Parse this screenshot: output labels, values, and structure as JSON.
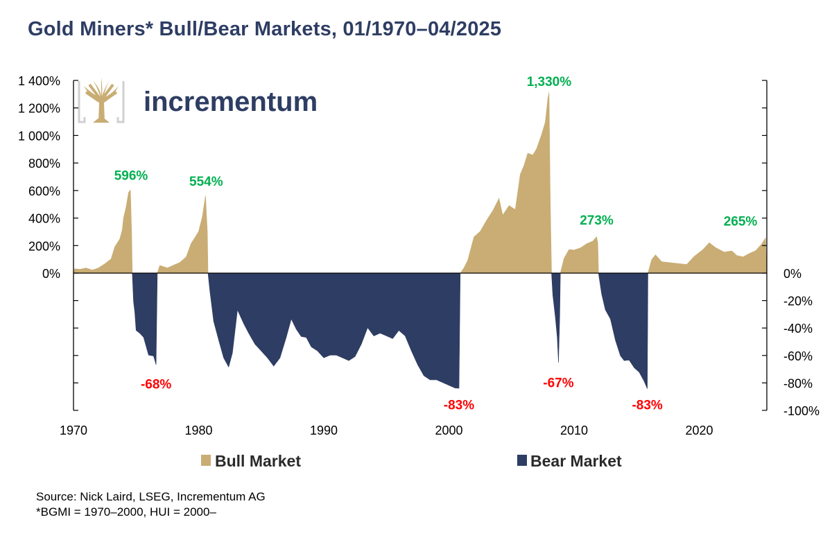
{
  "title": "Gold Miners* Bull/Bear Markets, 01/1970–04/2025",
  "logo": {
    "text": "incrementum",
    "icon": "tree-icon"
  },
  "source": "Source: Nick Laird, LSEG, Incrementum AG",
  "footnote": "*BGMI = 1970–2000, HUI = 2000–",
  "colors": {
    "bull": "#c9ad74",
    "bear": "#2e3d63",
    "peak_label": "#00b050",
    "trough_label": "#ff0000",
    "title": "#2e3d63"
  },
  "chart_data": {
    "type": "area",
    "title": "Gold Miners* Bull/Bear Markets, 01/1970–04/2025",
    "x_ticks": [
      "1970",
      "1980",
      "1990",
      "2000",
      "2010",
      "2020"
    ],
    "xlim": [
      1970,
      2025.4
    ],
    "left_axis": {
      "ticks": [
        "1 400%",
        "1 200%",
        "1 000%",
        "800%",
        "600%",
        "400%",
        "200%",
        "0%"
      ],
      "range": [
        0,
        1400
      ]
    },
    "right_axis": {
      "ticks": [
        "0%",
        "-20%",
        "-40%",
        "-60%",
        "-80%",
        "-100%"
      ],
      "range": [
        -100,
        0
      ]
    },
    "legend": {
      "position": "bottom",
      "entries": [
        "Bull Market",
        "Bear Market"
      ]
    },
    "series": [
      {
        "name": "Bull Market",
        "axis": "left",
        "segments": [
          {
            "points": [
              [
                1970.0,
                0
              ],
              [
                1970.1,
                20
              ],
              [
                1970.5,
                45
              ],
              [
                1971.0,
                55
              ],
              [
                1971.5,
                40
              ],
              [
                1972.0,
                55
              ],
              [
                1972.5,
                85
              ],
              [
                1973.0,
                120
              ],
              [
                1973.3,
                200
              ],
              [
                1973.7,
                250
              ],
              [
                1973.9,
                300
              ],
              [
                1974.0,
                420
              ],
              [
                1974.2,
                480
              ],
              [
                1974.4,
                570
              ],
              [
                1974.55,
                596
              ],
              [
                1974.65,
                300
              ],
              [
                1974.7,
                0
              ]
            ]
          },
          {
            "points": [
              [
                1976.7,
                0
              ],
              [
                1976.9,
                40
              ],
              [
                1977.5,
                55
              ],
              [
                1978.0,
                75
              ],
              [
                1978.5,
                95
              ],
              [
                1979.0,
                135
              ],
              [
                1979.4,
                200
              ],
              [
                1979.7,
                260
              ],
              [
                1980.0,
                320
              ],
              [
                1980.3,
                420
              ],
              [
                1980.55,
                554
              ],
              [
                1980.7,
                300
              ],
              [
                1980.75,
                0
              ]
            ]
          },
          {
            "points": [
              [
                2000.9,
                0
              ],
              [
                2001.2,
                40
              ],
              [
                2001.5,
                110
              ],
              [
                2002.0,
                280
              ],
              [
                2002.5,
                320
              ],
              [
                2003.0,
                400
              ],
              [
                2003.5,
                470
              ],
              [
                2004.0,
                560
              ],
              [
                2004.3,
                430
              ],
              [
                2004.8,
                500
              ],
              [
                2005.3,
                470
              ],
              [
                2005.7,
                720
              ],
              [
                2006.0,
                800
              ],
              [
                2006.3,
                880
              ],
              [
                2006.7,
                860
              ],
              [
                2007.0,
                920
              ],
              [
                2007.4,
                990
              ],
              [
                2007.7,
                1100
              ],
              [
                2007.9,
                1250
              ],
              [
                2008.0,
                1330
              ],
              [
                2008.1,
                500
              ],
              [
                2008.2,
                0
              ]
            ]
          },
          {
            "points": [
              [
                2008.9,
                0
              ],
              [
                2009.2,
                110
              ],
              [
                2009.6,
                160
              ],
              [
                2010.0,
                185
              ],
              [
                2010.5,
                200
              ],
              [
                2011.0,
                230
              ],
              [
                2011.5,
                250
              ],
              [
                2011.8,
                273
              ],
              [
                2011.9,
                200
              ],
              [
                2011.95,
                0
              ]
            ]
          },
          {
            "points": [
              [
                2015.9,
                0
              ],
              [
                2016.2,
                100
              ],
              [
                2016.5,
                150
              ],
              [
                2017.0,
                100
              ],
              [
                2018.0,
                90
              ],
              [
                2019.0,
                80
              ],
              [
                2019.6,
                110
              ],
              [
                2020.3,
                180
              ],
              [
                2020.8,
                230
              ],
              [
                2021.3,
                195
              ],
              [
                2022.0,
                170
              ],
              [
                2022.6,
                150
              ],
              [
                2023.0,
                145
              ],
              [
                2023.5,
                135
              ],
              [
                2024.0,
                160
              ],
              [
                2024.5,
                180
              ],
              [
                2025.0,
                230
              ],
              [
                2025.3,
                265
              ],
              [
                2025.4,
                0
              ]
            ]
          }
        ]
      },
      {
        "name": "Bear Market",
        "axis": "right",
        "segments": [
          {
            "points": [
              [
                1974.7,
                0
              ],
              [
                1974.8,
                -20
              ],
              [
                1974.9,
                -30
              ],
              [
                1975.0,
                -40
              ],
              [
                1975.3,
                -43
              ],
              [
                1975.6,
                -48
              ],
              [
                1976.0,
                -58
              ],
              [
                1976.4,
                -62
              ],
              [
                1976.6,
                -68
              ],
              [
                1976.7,
                0
              ]
            ]
          },
          {
            "points": [
              [
                1980.75,
                0
              ],
              [
                1980.9,
                -15
              ],
              [
                1981.2,
                -35
              ],
              [
                1981.6,
                -50
              ],
              [
                1982.0,
                -60
              ],
              [
                1982.4,
                -70
              ],
              [
                1982.7,
                -58
              ],
              [
                1983.1,
                -28
              ],
              [
                1983.6,
                -38
              ],
              [
                1984.0,
                -42
              ],
              [
                1984.5,
                -50
              ],
              [
                1985.0,
                -55
              ],
              [
                1985.5,
                -60
              ],
              [
                1986.0,
                -66
              ],
              [
                1986.5,
                -60
              ],
              [
                1987.0,
                -45
              ],
              [
                1987.4,
                -35
              ],
              [
                1987.8,
                -40
              ],
              [
                1988.2,
                -46
              ],
              [
                1988.6,
                -48
              ],
              [
                1989.0,
                -52
              ],
              [
                1989.5,
                -55
              ],
              [
                1990.0,
                -60
              ],
              [
                1990.5,
                -58
              ],
              [
                1991.0,
                -58
              ],
              [
                1991.5,
                -60
              ],
              [
                1992.0,
                -62
              ],
              [
                1992.5,
                -59
              ],
              [
                1993.0,
                -50
              ],
              [
                1993.5,
                -38
              ],
              [
                1994.0,
                -44
              ],
              [
                1994.5,
                -42
              ],
              [
                1995.0,
                -44
              ],
              [
                1995.5,
                -46
              ],
              [
                1996.0,
                -40
              ],
              [
                1996.5,
                -44
              ],
              [
                1997.0,
                -55
              ],
              [
                1997.5,
                -65
              ],
              [
                1998.0,
                -73
              ],
              [
                1998.5,
                -76
              ],
              [
                1999.0,
                -76
              ],
              [
                1999.5,
                -78
              ],
              [
                2000.0,
                -80
              ],
              [
                2000.5,
                -82
              ],
              [
                2000.8,
                -83
              ],
              [
                2000.9,
                0
              ]
            ]
          },
          {
            "points": [
              [
                2008.2,
                0
              ],
              [
                2008.3,
                -15
              ],
              [
                2008.5,
                -30
              ],
              [
                2008.65,
                -45
              ],
              [
                2008.75,
                -67
              ],
              [
                2008.85,
                -30
              ],
              [
                2008.9,
                0
              ]
            ]
          },
          {
            "points": [
              [
                2011.95,
                0
              ],
              [
                2012.2,
                -15
              ],
              [
                2012.5,
                -25
              ],
              [
                2012.9,
                -35
              ],
              [
                2013.3,
                -48
              ],
              [
                2013.7,
                -60
              ],
              [
                2014.0,
                -62
              ],
              [
                2014.4,
                -65
              ],
              [
                2014.8,
                -68
              ],
              [
                2015.2,
                -72
              ],
              [
                2015.6,
                -80
              ],
              [
                2015.85,
                -83
              ],
              [
                2015.9,
                0
              ]
            ]
          }
        ]
      }
    ],
    "annotations": [
      {
        "text": "596%",
        "x": 1974.6,
        "y": 596,
        "axis": "left",
        "kind": "peak"
      },
      {
        "text": "554%",
        "x": 1980.6,
        "y": 554,
        "axis": "left",
        "kind": "peak"
      },
      {
        "text": "1,330%",
        "x": 2008.0,
        "y": 1330,
        "axis": "left",
        "kind": "peak"
      },
      {
        "text": "273%",
        "x": 2011.8,
        "y": 273,
        "axis": "left",
        "kind": "peak"
      },
      {
        "text": "265%",
        "x": 2025.3,
        "y": 265,
        "axis": "left",
        "kind": "peak"
      },
      {
        "text": "-68%",
        "x": 1976.6,
        "y": -68,
        "axis": "right",
        "kind": "trough"
      },
      {
        "text": "-83%",
        "x": 2000.8,
        "y": -83,
        "axis": "right",
        "kind": "trough"
      },
      {
        "text": "-67%",
        "x": 2008.75,
        "y": -67,
        "axis": "right",
        "kind": "trough"
      },
      {
        "text": "-83%",
        "x": 2015.85,
        "y": -83,
        "axis": "right",
        "kind": "trough"
      }
    ]
  }
}
